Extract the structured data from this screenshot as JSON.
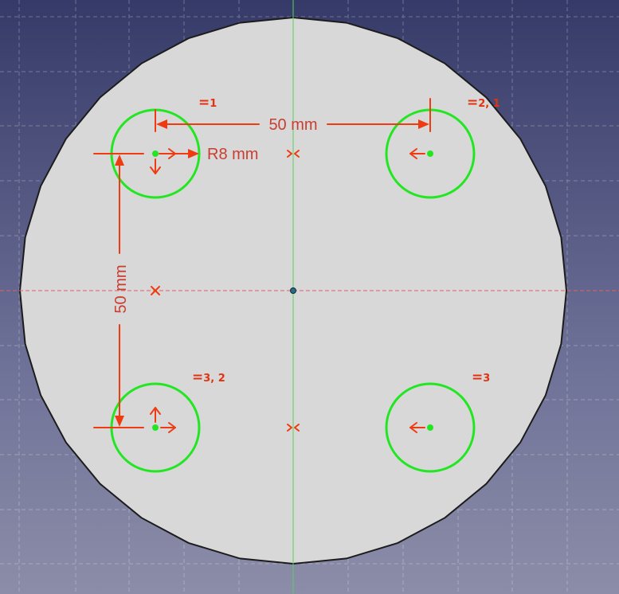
{
  "view": {
    "background_top": "#363a68",
    "background_bottom": "#8c8da8",
    "grid_color": "#ffffff",
    "face_fill": "#d8d8d8",
    "face_edge": "#1c1c1c",
    "circle_color": "#22e622",
    "constraint_color": "#ee3b12",
    "dimension_text_color": "#c93e30",
    "axis_x_color": "#e06060",
    "axis_y_color": "#55d455"
  },
  "dimensions": {
    "horizontal_label": "50 mm",
    "vertical_label": "50 mm",
    "radius_label": "R8 mm"
  },
  "equal_constraints": {
    "top_left": {
      "sign": "=",
      "index": "1"
    },
    "top_right": {
      "sign": "=",
      "index": "2, 1"
    },
    "bottom_left": {
      "sign": "=",
      "index": "3, 2"
    },
    "bottom_right": {
      "sign": "=",
      "index": "3"
    }
  },
  "holes": [
    {
      "name": "top-left"
    },
    {
      "name": "top-right"
    },
    {
      "name": "bottom-left"
    },
    {
      "name": "bottom-right"
    }
  ]
}
